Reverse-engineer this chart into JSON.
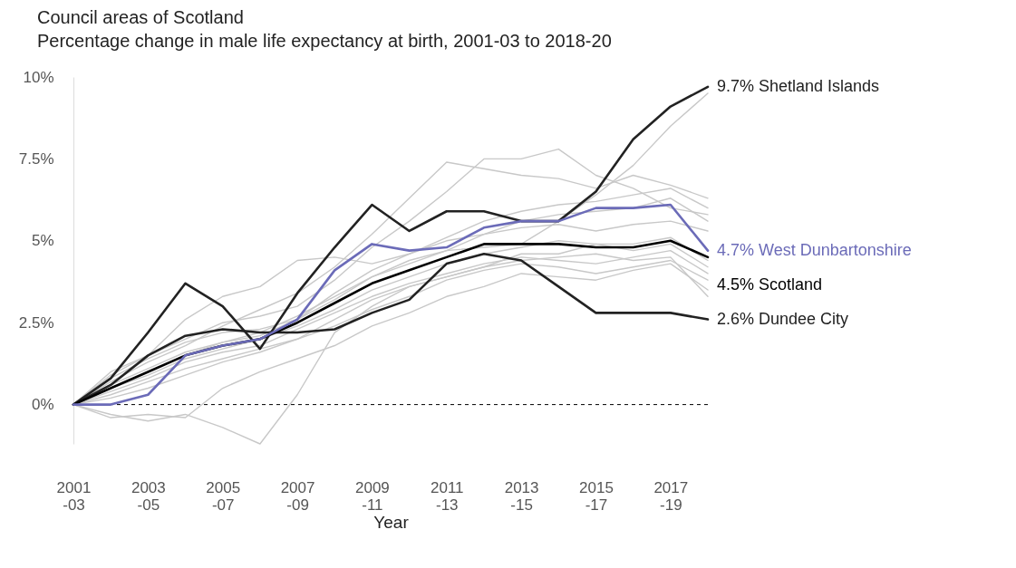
{
  "chart_data": {
    "type": "line",
    "title": "Council areas of Scotland",
    "subtitle": "Percentage change in male life expectancy at birth, 2001-03 to 2018-20",
    "xlabel": "Year",
    "categories": [
      "2001-03",
      null,
      "2003-05",
      null,
      "2005-07",
      null,
      "2007-09",
      null,
      "2009-11",
      null,
      "2011-13",
      null,
      "2013-15",
      null,
      "2015-17",
      null,
      "2017-19",
      null
    ],
    "ylim": [
      -1.2,
      10
    ],
    "yticks": [
      {
        "value": 0,
        "label": "0%"
      },
      {
        "value": 2.5,
        "label": "2.5%"
      },
      {
        "value": 5,
        "label": "5%"
      },
      {
        "value": 7.5,
        "label": "7.5%"
      },
      {
        "value": 10,
        "label": "10%"
      }
    ],
    "marker": "none",
    "line_style": "solid",
    "ref_lines": [
      {
        "axis": "y",
        "value": 0,
        "color": "#000000",
        "line_style": "dashed"
      }
    ],
    "series": [
      {
        "color": "#c8c8c8",
        "values": [
          0,
          0.7,
          1.3,
          1.8,
          2.4,
          2.9,
          3.4,
          4.2,
          5.2,
          6.3,
          7.4,
          7.2,
          7.0,
          6.9,
          6.6,
          7.0,
          6.7,
          6.3
        ]
      },
      {
        "color": "#c8c8c8",
        "values": [
          0,
          0.9,
          1.5,
          2.0,
          2.5,
          2.7,
          3.0,
          3.8,
          4.8,
          5.6,
          6.5,
          7.5,
          7.5,
          7.8,
          7.0,
          6.6,
          6.0,
          5.8
        ]
      },
      {
        "color": "#c8c8c8",
        "values": [
          0,
          -0.3,
          -0.5,
          -0.3,
          -0.7,
          -1.2,
          0.3,
          2.2,
          3.0,
          3.6,
          3.9,
          4.2,
          4.6,
          4.6,
          4.9,
          4.7,
          4.9,
          4.2
        ]
      },
      {
        "color": "#c8c8c8",
        "values": [
          0,
          1.0,
          1.5,
          2.6,
          3.3,
          3.6,
          4.4,
          4.5,
          4.3,
          4.6,
          5.0,
          5.2,
          5.4,
          5.5,
          5.3,
          5.5,
          5.6,
          5.3
        ]
      },
      {
        "color": "#c8c8c8",
        "values": [
          0,
          -0.4,
          -0.3,
          -0.4,
          0.5,
          1.0,
          1.4,
          1.8,
          2.4,
          2.8,
          3.3,
          3.6,
          4.0,
          3.9,
          3.8,
          4.1,
          4.3,
          3.5
        ]
      },
      {
        "color": "#c8c8c8",
        "values": [
          0,
          0.4,
          0.8,
          1.3,
          1.6,
          1.8,
          2.3,
          2.8,
          3.3,
          3.7,
          4.0,
          4.3,
          4.5,
          4.4,
          4.3,
          4.5,
          4.7,
          4.0
        ]
      },
      {
        "color": "#c8c8c8",
        "values": [
          0,
          0.6,
          1.1,
          1.6,
          1.9,
          2.1,
          2.6,
          3.2,
          3.9,
          4.3,
          4.7,
          5.2,
          5.6,
          5.8,
          5.9,
          6.0,
          6.3,
          5.6
        ]
      },
      {
        "color": "#c8c8c8",
        "values": [
          0,
          0.2,
          0.5,
          0.9,
          1.3,
          1.6,
          2.0,
          2.4,
          2.9,
          3.3,
          3.8,
          4.1,
          4.3,
          4.2,
          4.0,
          4.2,
          4.4,
          3.8
        ]
      },
      {
        "color": "#c8c8c8",
        "values": [
          0,
          0.5,
          1.0,
          1.5,
          1.9,
          2.2,
          2.7,
          3.3,
          3.9,
          4.4,
          4.7,
          4.8,
          4.9,
          5.6,
          6.4,
          7.3,
          8.5,
          9.5
        ]
      },
      {
        "color": "#c8c8c8",
        "values": [
          0,
          0.8,
          1.4,
          1.9,
          2.2,
          2.3,
          2.6,
          3.4,
          4.1,
          4.6,
          5.1,
          5.6,
          5.9,
          6.1,
          6.2,
          6.4,
          6.6,
          6.0
        ]
      },
      {
        "color": "#c8c8c8",
        "values": [
          0,
          0.3,
          0.7,
          1.1,
          1.4,
          1.7,
          2.0,
          2.6,
          3.2,
          3.6,
          3.9,
          4.2,
          4.4,
          4.5,
          4.6,
          4.4,
          4.5,
          3.3
        ]
      },
      {
        "color": "#c8c8c8",
        "values": [
          0,
          0.5,
          0.9,
          1.4,
          1.7,
          2.0,
          2.4,
          2.9,
          3.5,
          3.9,
          4.3,
          4.6,
          4.8,
          5.0,
          4.9,
          4.9,
          5.1,
          4.4
        ]
      },
      {
        "name": "2.6% Dundee City",
        "color": "#222222",
        "values": [
          0,
          0.6,
          1.5,
          2.1,
          2.3,
          2.2,
          2.2,
          2.3,
          2.8,
          3.2,
          4.3,
          4.6,
          4.4,
          3.6,
          2.8,
          2.8,
          2.8,
          2.6
        ]
      },
      {
        "name": "9.7% Shetland Islands",
        "color": "#222222",
        "values": [
          0,
          0.8,
          2.2,
          3.7,
          3.0,
          1.7,
          3.4,
          4.8,
          6.1,
          5.3,
          5.9,
          5.9,
          5.6,
          5.6,
          6.5,
          8.1,
          9.1,
          9.7
        ]
      },
      {
        "name": "4.5% Scotland",
        "color": "#000000",
        "values": [
          0,
          0.5,
          1.0,
          1.5,
          1.8,
          2.0,
          2.5,
          3.1,
          3.7,
          4.1,
          4.5,
          4.9,
          4.9,
          4.9,
          4.8,
          4.8,
          5.0,
          4.5
        ]
      },
      {
        "name": "4.7% West Dunbartonshire",
        "color": "#6b6bb8",
        "values": [
          0,
          0.0,
          0.3,
          1.5,
          1.8,
          2.0,
          2.6,
          4.1,
          4.9,
          4.7,
          4.8,
          5.4,
          5.6,
          5.6,
          6.0,
          6.0,
          6.1,
          4.7
        ]
      }
    ]
  }
}
